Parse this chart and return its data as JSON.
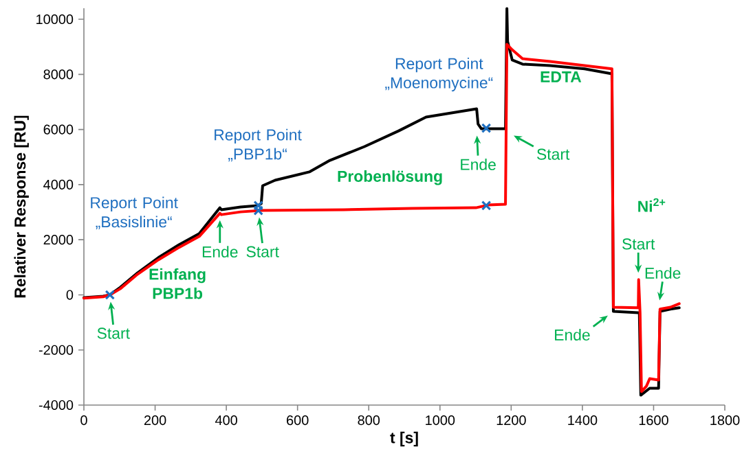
{
  "chart_data": {
    "type": "line",
    "xlabel": "t [s]",
    "ylabel": "Relativer Response [RU]",
    "xlim": [
      0,
      1800
    ],
    "xticks": [
      0,
      200,
      400,
      600,
      800,
      1000,
      1200,
      1400,
      1600,
      1800
    ],
    "ylim": [
      -4000,
      10400
    ],
    "yticks": [
      -4000,
      -2000,
      0,
      2000,
      4000,
      6000,
      8000,
      10000
    ],
    "series": [
      {
        "color": "#000000",
        "x": [
          0,
          54,
          73,
          102,
          151,
          209,
          267,
          324,
          382,
          386,
          440,
          488,
          498,
          502,
          537,
          633,
          691,
          788,
          884,
          961,
          1103,
          1107,
          1116,
          1184,
          1188,
          1190,
          1203,
          1232,
          1309,
          1406,
          1483,
          1487,
          1557,
          1560,
          1564,
          1589,
          1614,
          1618,
          1647,
          1672
        ],
        "values": [
          -100,
          -50,
          0,
          270,
          800,
          1350,
          1820,
          2220,
          3160,
          3090,
          3190,
          3240,
          3310,
          3960,
          4160,
          4460,
          4880,
          5380,
          5950,
          6450,
          6750,
          6200,
          6030,
          6030,
          10390,
          9190,
          8520,
          8370,
          8320,
          8200,
          8020,
          -600,
          -650,
          -650,
          -3640,
          -3390,
          -3390,
          -600,
          -520,
          -470
        ]
      },
      {
        "color": "#ff0000",
        "x": [
          0,
          54,
          73,
          102,
          151,
          209,
          267,
          324,
          382,
          386,
          440,
          498,
          730,
          923,
          1101,
          1135,
          1184,
          1188,
          1203,
          1232,
          1309,
          1406,
          1483,
          1487,
          1557,
          1558,
          1562,
          1566,
          1580,
          1589,
          1614,
          1618,
          1647,
          1672
        ],
        "values": [
          -120,
          -70,
          0,
          220,
          750,
          1270,
          1720,
          2120,
          2960,
          2910,
          3010,
          3060,
          3090,
          3140,
          3160,
          3260,
          3290,
          9090,
          8890,
          8570,
          8470,
          8320,
          8200,
          -450,
          -470,
          550,
          -650,
          -3510,
          -3310,
          -3040,
          -3090,
          -520,
          -450,
          -320
        ]
      },
      {
        "type": "scatter",
        "color": "#1f6fc0",
        "marker": "cross",
        "x": [
          73,
          490,
          490,
          1130,
          1130
        ],
        "values": [
          0,
          3240,
          3060,
          6050,
          3240
        ]
      }
    ],
    "annotations": [
      "Report Point „Basislinie“",
      "Report Point „PBP1b“",
      "Report Point „Moenomycine“",
      "Einfang PBP1b",
      "Probenlösung",
      "EDTA",
      "Ni$^{2+}$",
      {
        "text": "Start",
        "x": 73,
        "y": 0
      },
      {
        "text": "Ende",
        "x": 382,
        "y": 2960
      },
      {
        "text": "Start",
        "x": 490,
        "y": 3060
      },
      {
        "text": "Ende",
        "x": 1103,
        "y": 6030
      },
      {
        "text": "Start",
        "x": 1190,
        "y": 5900
      },
      {
        "text": "Ende",
        "x": 1487,
        "y": -600
      },
      {
        "text": "Start",
        "x": 1557,
        "y": 550
      },
      {
        "text": "Ende",
        "x": 1614,
        "y": -450
      }
    ]
  }
}
